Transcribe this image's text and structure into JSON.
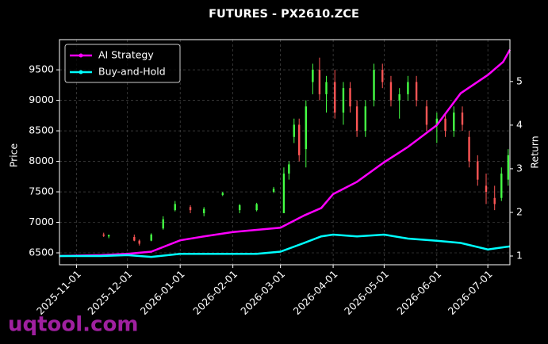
{
  "chart_data": {
    "type": "candlestick",
    "title": "FUTURES - PX2610.ZCE",
    "y_label": "Price",
    "y2_label": "Return",
    "watermark": "uqtool.com",
    "grid": true,
    "legend": "upper left",
    "xlim": [
      "2025-10-22",
      "2026-07-14"
    ],
    "xticks": [
      "2025-11-01",
      "2025-12-01",
      "2026-01-01",
      "2026-02-01",
      "2026-03-01",
      "2026-04-01",
      "2026-05-01",
      "2026-06-01",
      "2026-07-01"
    ],
    "ylim": [
      6305,
      9995
    ],
    "yticks": [
      6500,
      7000,
      7500,
      8000,
      8500,
      9000,
      9500
    ],
    "y2lim": [
      0.8,
      5.96
    ],
    "y2ticks": [
      1,
      2,
      3,
      4,
      5
    ],
    "up_color": "#44ff44",
    "down_color": "#ff5555",
    "candles": {
      "x": [
        "2025-11-17",
        "2025-11-20",
        "2025-12-05",
        "2025-12-08",
        "2025-12-15",
        "2025-12-22",
        "2025-12-29",
        "2026-01-07",
        "2026-01-15",
        "2026-01-26",
        "2026-02-05",
        "2026-02-15",
        "2026-02-25",
        "2026-03-03",
        "2026-03-06",
        "2026-03-09",
        "2026-03-12",
        "2026-03-16",
        "2026-03-20",
        "2026-03-24",
        "2026-03-28",
        "2026-04-02",
        "2026-04-07",
        "2026-04-11",
        "2026-04-15",
        "2026-04-20",
        "2026-04-25",
        "2026-04-30",
        "2026-05-05",
        "2026-05-10",
        "2026-05-15",
        "2026-05-20",
        "2026-05-26",
        "2026-06-01",
        "2026-06-06",
        "2026-06-11",
        "2026-06-16",
        "2026-06-20",
        "2026-06-25",
        "2026-06-30",
        "2026-07-05",
        "2026-07-09",
        "2026-07-13"
      ],
      "open": [
        6800,
        6770,
        6760,
        6700,
        6700,
        6900,
        7200,
        7250,
        7150,
        7450,
        7200,
        7200,
        7500,
        7150,
        7800,
        8400,
        8600,
        8200,
        9300,
        9500,
        9100,
        9300,
        8800,
        9200,
        8900,
        8500,
        9000,
        9500,
        9300,
        9000,
        9100,
        9300,
        8900,
        8600,
        8700,
        8500,
        8800,
        8400,
        8000,
        7600,
        7400,
        7400,
        7700
      ],
      "high": [
        6830,
        6800,
        6800,
        6720,
        6820,
        7100,
        7350,
        7280,
        7250,
        7500,
        7300,
        7320,
        7580,
        7900,
        8000,
        8700,
        8700,
        9000,
        9600,
        9700,
        9400,
        9500,
        9300,
        9300,
        9000,
        9000,
        9600,
        9600,
        9400,
        9200,
        9400,
        9400,
        9000,
        8800,
        8800,
        8900,
        8900,
        8500,
        8100,
        7800,
        7600,
        7900,
        8200
      ],
      "low": [
        6760,
        6740,
        6690,
        6620,
        6690,
        6880,
        7180,
        7150,
        7100,
        7430,
        7150,
        7180,
        7480,
        7150,
        7700,
        8300,
        8000,
        7900,
        9100,
        9000,
        8800,
        8700,
        8600,
        8800,
        8400,
        8400,
        8900,
        9200,
        8900,
        8700,
        9000,
        8900,
        8500,
        8300,
        8400,
        8400,
        8500,
        7900,
        7600,
        7300,
        7200,
        7350,
        7600
      ],
      "close": [
        6780,
        6790,
        6700,
        6650,
        6800,
        7050,
        7300,
        7200,
        7220,
        7480,
        7280,
        7300,
        7550,
        7800,
        7950,
        8600,
        8100,
        8900,
        9500,
        9100,
        9300,
        8800,
        9200,
        8900,
        8500,
        8900,
        9500,
        9300,
        9000,
        9100,
        9300,
        9000,
        8600,
        8700,
        8500,
        8800,
        8600,
        8000,
        7700,
        7500,
        7300,
        7800,
        8100
      ]
    },
    "x": [
      "2025-10-22",
      "2025-11-15",
      "2025-12-01",
      "2025-12-15",
      "2026-01-01",
      "2026-01-15",
      "2026-02-01",
      "2026-02-15",
      "2026-03-01",
      "2026-03-15",
      "2026-03-25",
      "2026-04-01",
      "2026-04-15",
      "2026-05-01",
      "2026-05-15",
      "2026-06-01",
      "2026-06-15",
      "2026-07-01",
      "2026-07-10",
      "2026-07-14"
    ],
    "series": [
      {
        "name": "AI Strategy",
        "color": "#ff00ff",
        "axis": "y2",
        "values": [
          1.0,
          1.02,
          1.05,
          1.1,
          1.36,
          1.45,
          1.55,
          1.6,
          1.65,
          1.93,
          2.1,
          2.42,
          2.7,
          3.15,
          3.5,
          4.0,
          4.73,
          5.15,
          5.45,
          5.73
        ]
      },
      {
        "name": "Buy-and-Hold",
        "color": "#00ffff",
        "axis": "y2",
        "values": [
          1.0,
          1.0,
          1.02,
          0.98,
          1.05,
          1.05,
          1.05,
          1.05,
          1.1,
          1.3,
          1.45,
          1.49,
          1.45,
          1.49,
          1.4,
          1.35,
          1.3,
          1.15,
          1.2,
          1.22
        ]
      }
    ]
  }
}
